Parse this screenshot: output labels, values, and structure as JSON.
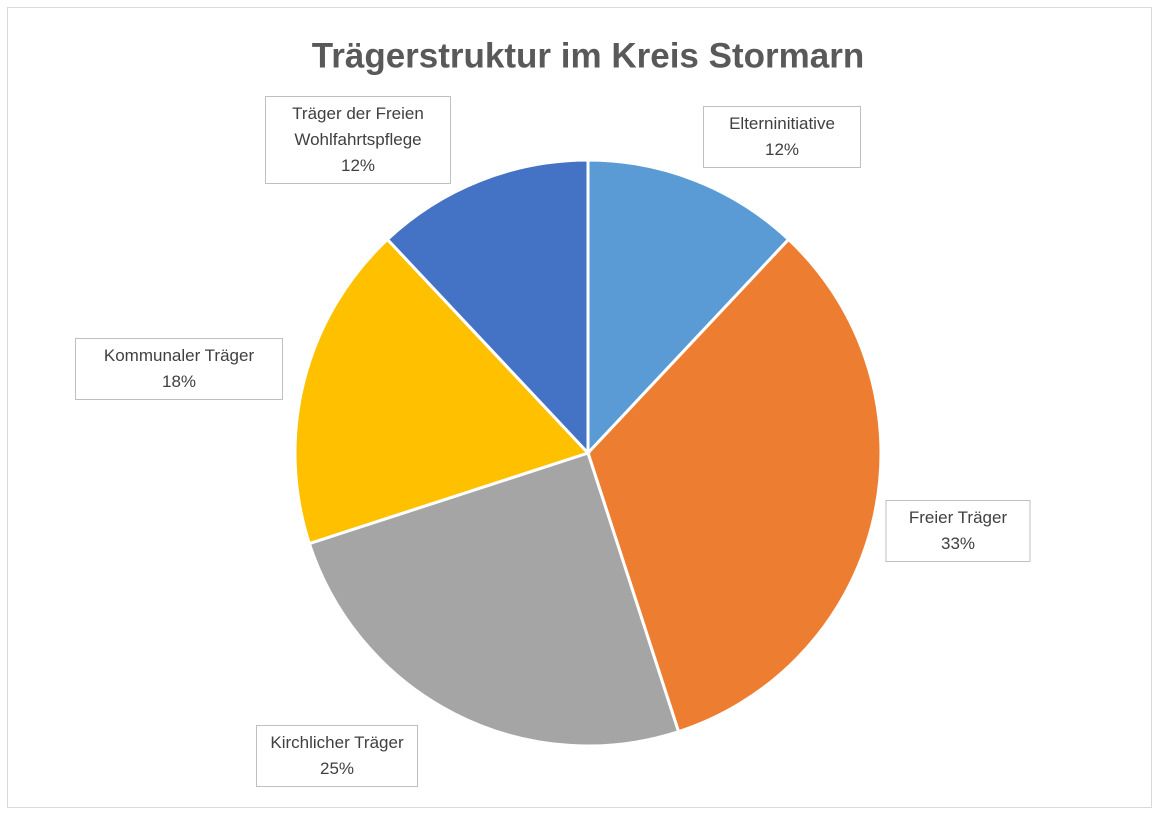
{
  "chart_data": {
    "type": "pie",
    "title": "Trägerstruktur im Kreis Stormarn",
    "categories": [
      "Elterninitiative",
      "Freier Träger",
      "Kirchlicher Träger",
      "Kommunaler Träger",
      "Träger der Freien Wohlfahrtspflege"
    ],
    "values": [
      12,
      33,
      25,
      18,
      12
    ],
    "value_labels": [
      "12%",
      "33%",
      "25%",
      "18%",
      "12%"
    ],
    "colors": [
      "#5b9bd5",
      "#ed7d31",
      "#a5a5a5",
      "#ffc000",
      "#4472c4"
    ]
  }
}
